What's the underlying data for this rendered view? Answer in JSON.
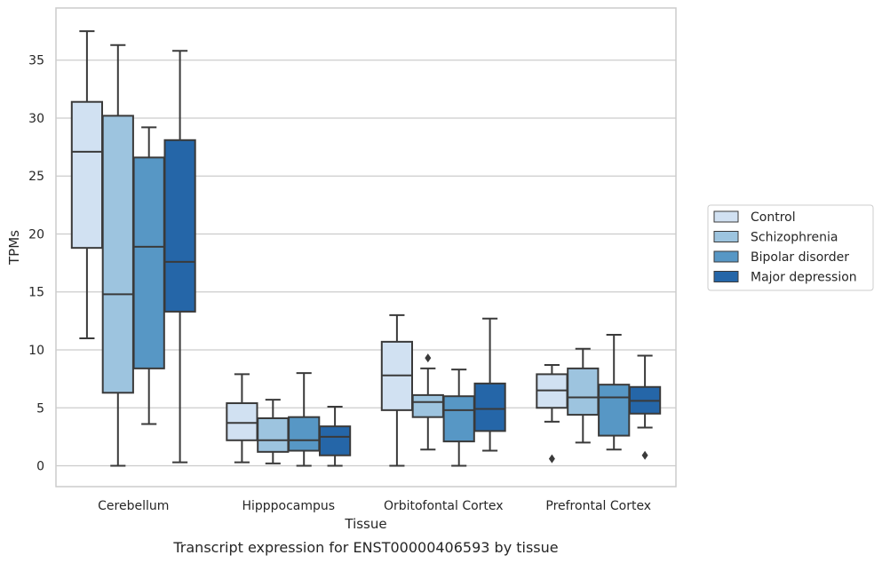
{
  "chart_data": {
    "type": "box",
    "caption": "Transcript expression for ENST00000406593 by tissue",
    "xlabel": "Tissue",
    "ylabel": "TPMs",
    "ylim": [
      -1.8,
      39.5
    ],
    "yticks": [
      0,
      5,
      10,
      15,
      20,
      25,
      30,
      35
    ],
    "grid": true,
    "legend_position": "right",
    "categories": [
      "Cerebellum",
      "Hipppocampus",
      "Orbitofontal Cortex",
      "Prefrontal Cortex"
    ],
    "series": [
      {
        "name": "Control",
        "color": "#d1e1f2",
        "boxes": [
          {
            "whislo": 11.0,
            "q1": 18.8,
            "med": 27.1,
            "q3": 31.4,
            "whishi": 37.5,
            "fliers": []
          },
          {
            "whislo": 0.3,
            "q1": 2.2,
            "med": 3.7,
            "q3": 5.4,
            "whishi": 7.9,
            "fliers": []
          },
          {
            "whislo": 0.0,
            "q1": 4.8,
            "med": 7.8,
            "q3": 10.7,
            "whishi": 13.0,
            "fliers": []
          },
          {
            "whislo": 3.8,
            "q1": 5.0,
            "med": 6.5,
            "q3": 7.9,
            "whishi": 8.7,
            "fliers": [
              0.6
            ]
          }
        ]
      },
      {
        "name": "Schizophrenia",
        "color": "#9dc4df",
        "boxes": [
          {
            "whislo": 0.0,
            "q1": 6.3,
            "med": 14.8,
            "q3": 30.2,
            "whishi": 36.3,
            "fliers": []
          },
          {
            "whislo": 0.2,
            "q1": 1.2,
            "med": 2.2,
            "q3": 4.1,
            "whishi": 5.7,
            "fliers": []
          },
          {
            "whislo": 1.4,
            "q1": 4.2,
            "med": 5.5,
            "q3": 6.1,
            "whishi": 8.4,
            "fliers": [
              9.3
            ]
          },
          {
            "whislo": 2.0,
            "q1": 4.4,
            "med": 5.9,
            "q3": 8.4,
            "whishi": 10.1,
            "fliers": []
          }
        ]
      },
      {
        "name": "Bipolar disorder",
        "color": "#5797c5",
        "boxes": [
          {
            "whislo": 3.6,
            "q1": 8.4,
            "med": 18.9,
            "q3": 26.6,
            "whishi": 29.2,
            "fliers": []
          },
          {
            "whislo": 0.0,
            "q1": 1.3,
            "med": 2.2,
            "q3": 4.2,
            "whishi": 8.0,
            "fliers": []
          },
          {
            "whislo": 0.0,
            "q1": 2.1,
            "med": 4.8,
            "q3": 6.0,
            "whishi": 8.3,
            "fliers": []
          },
          {
            "whislo": 1.4,
            "q1": 2.6,
            "med": 5.9,
            "q3": 7.0,
            "whishi": 11.3,
            "fliers": []
          }
        ]
      },
      {
        "name": "Major depression",
        "color": "#2566a8",
        "boxes": [
          {
            "whislo": 0.3,
            "q1": 13.3,
            "med": 17.6,
            "q3": 28.1,
            "whishi": 35.8,
            "fliers": []
          },
          {
            "whislo": 0.0,
            "q1": 0.9,
            "med": 2.5,
            "q3": 3.4,
            "whishi": 5.1,
            "fliers": []
          },
          {
            "whislo": 1.3,
            "q1": 3.0,
            "med": 4.9,
            "q3": 7.1,
            "whishi": 12.7,
            "fliers": []
          },
          {
            "whislo": 3.3,
            "q1": 4.5,
            "med": 5.6,
            "q3": 6.8,
            "whishi": 9.5,
            "fliers": [
              0.9
            ]
          }
        ]
      }
    ]
  },
  "colors": {
    "grid": "#cccccc",
    "frame": "#cccccc",
    "line": "#3a3a3a"
  }
}
